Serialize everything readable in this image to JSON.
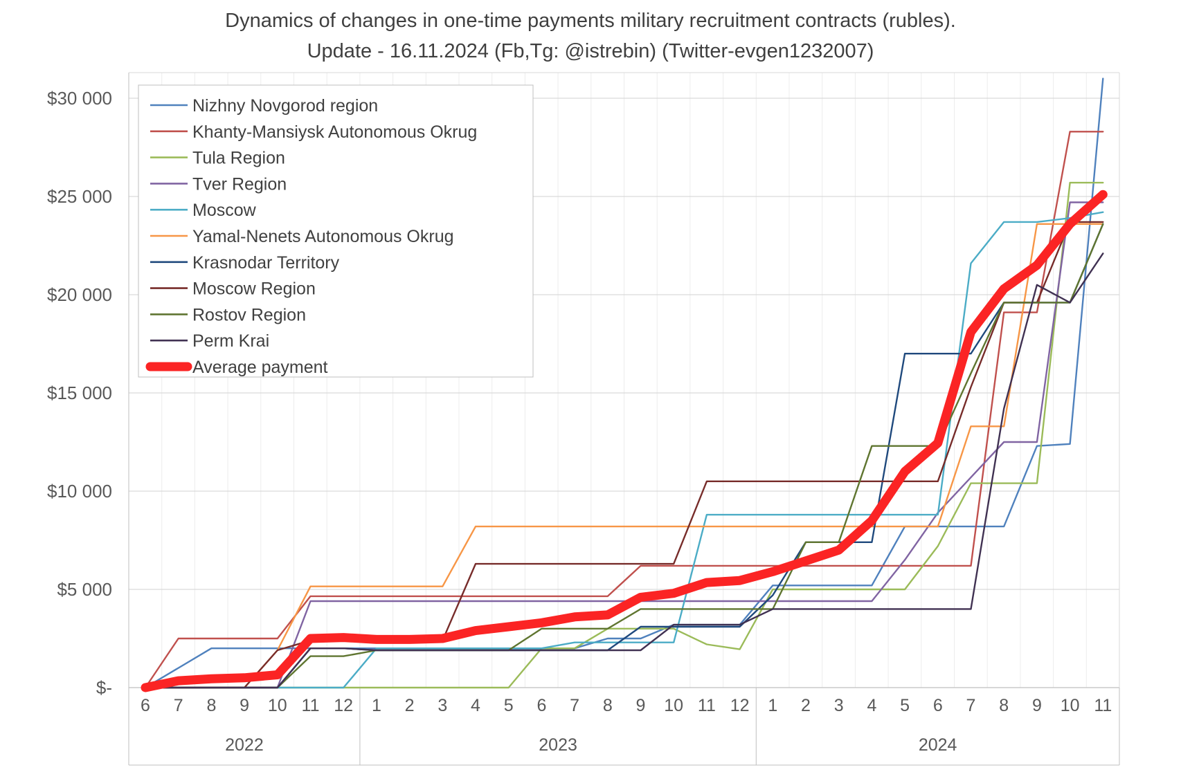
{
  "title": {
    "line1": "Dynamics of changes in one-time payments military recruitment contracts (rubles).",
    "line2": "Update - 16.11.2024 (Fb,Tg: @istrebin) (Twitter-evgen1232007)"
  },
  "colors": {
    "grid": "#d9d9d9",
    "grid_vertical": "#ececec",
    "axis_line": "#bfbfbf",
    "tick_text": "#595959",
    "legend_border": "#bfbfbf",
    "legend_text": "#404040",
    "average_red": "#fb2424"
  },
  "y_axis": {
    "ticks": [
      {
        "label": "$30 000",
        "value": 30000
      },
      {
        "label": "$25 000",
        "value": 25000
      },
      {
        "label": "$20 000",
        "value": 20000
      },
      {
        "label": "$15 000",
        "value": 15000
      },
      {
        "label": "$10 000",
        "value": 10000
      },
      {
        "label": "$5 000",
        "value": 5000
      },
      {
        "label": "$-",
        "value": 0
      }
    ]
  },
  "x_axis": {
    "year_groups": [
      {
        "label": "2022",
        "months": 7
      },
      {
        "label": "2023",
        "months": 12
      },
      {
        "label": "2024",
        "months": 11
      }
    ]
  },
  "chart_data": {
    "type": "line",
    "x_months": [
      "6",
      "7",
      "8",
      "9",
      "10",
      "11",
      "12",
      "1",
      "2",
      "3",
      "4",
      "5",
      "6",
      "7",
      "8",
      "9",
      "10",
      "11",
      "12",
      "1",
      "2",
      "3",
      "4",
      "5",
      "6",
      "7",
      "8",
      "9",
      "10",
      "11"
    ],
    "ylim": [
      0,
      30000
    ],
    "grid": true,
    "legend_position": "top-left",
    "series": [
      {
        "name": "Nizhny Novgorod region",
        "color": "#4f81bd",
        "width": 2.4,
        "values": [
          0,
          1000,
          2000,
          2000,
          2000,
          2000,
          2000,
          2000,
          2000,
          2000,
          2000,
          2000,
          2000,
          2000,
          2500,
          2500,
          3200,
          3200,
          3200,
          5200,
          5200,
          5200,
          5200,
          8200,
          8200,
          8200,
          8200,
          12300,
          12400,
          31000
        ]
      },
      {
        "name": "Khanty-Mansiysk Autonomous Okrug",
        "color": "#c0504d",
        "width": 2.4,
        "values": [
          0,
          2500,
          2500,
          2500,
          2500,
          4650,
          4650,
          4650,
          4650,
          4650,
          4650,
          4650,
          4650,
          4650,
          4650,
          6200,
          6200,
          6200,
          6200,
          6200,
          6200,
          6200,
          6200,
          6200,
          6200,
          6200,
          19100,
          19100,
          28300,
          28300
        ]
      },
      {
        "name": "Tula Region",
        "color": "#9bbb59",
        "width": 2.4,
        "values": [
          0,
          0,
          0,
          0,
          0,
          0,
          0,
          0,
          0,
          0,
          0,
          0,
          2000,
          2000,
          3000,
          3000,
          3000,
          2200,
          1950,
          5000,
          5000,
          5000,
          5000,
          5000,
          7200,
          10400,
          10400,
          10400,
          25700,
          25700
        ]
      },
      {
        "name": "Tver Region",
        "color": "#8064a2",
        "width": 2.4,
        "values": [
          0,
          0,
          0,
          0,
          0,
          4400,
          4400,
          4400,
          4400,
          4400,
          4400,
          4400,
          4400,
          4400,
          4400,
          4400,
          4400,
          4400,
          4400,
          4400,
          4400,
          4400,
          4400,
          6500,
          8900,
          10700,
          12500,
          12500,
          24700,
          24700
        ]
      },
      {
        "name": "Moscow",
        "color": "#4bacc6",
        "width": 2.4,
        "values": [
          0,
          0,
          0,
          0,
          0,
          0,
          0,
          2000,
          2000,
          2000,
          2000,
          2000,
          2000,
          2300,
          2300,
          2300,
          2300,
          8800,
          8800,
          8800,
          8800,
          8800,
          8800,
          8800,
          8800,
          21600,
          23700,
          23700,
          23900,
          24200
        ]
      },
      {
        "name": "Yamal-Nenets Autonomous Okrug",
        "color": "#f79646",
        "width": 2.4,
        "values": [
          0,
          0,
          0,
          0,
          1900,
          5150,
          5150,
          5150,
          5150,
          5150,
          8200,
          8200,
          8200,
          8200,
          8200,
          8200,
          8200,
          8200,
          8200,
          8200,
          8200,
          8200,
          8200,
          8200,
          8200,
          13300,
          13300,
          23600,
          23600,
          23600
        ]
      },
      {
        "name": "Krasnodar Territory",
        "color": "#1f497d",
        "width": 2.4,
        "values": [
          0,
          0,
          0,
          0,
          0,
          2000,
          2000,
          1900,
          1900,
          1900,
          1900,
          1900,
          1900,
          1900,
          1900,
          3100,
          3100,
          3100,
          3100,
          4700,
          7400,
          7400,
          7400,
          17000,
          17000,
          17000,
          19600,
          19600,
          19600,
          23600
        ]
      },
      {
        "name": "Moscow Region",
        "color": "#772c2a",
        "width": 2.4,
        "values": [
          0,
          0,
          0,
          0,
          1900,
          2400,
          2400,
          2400,
          2400,
          2400,
          6300,
          6300,
          6300,
          6300,
          6300,
          6300,
          6300,
          10500,
          10500,
          10500,
          10500,
          10500,
          10500,
          10500,
          10500,
          15300,
          19600,
          19600,
          23700,
          23700
        ]
      },
      {
        "name": "Rostov Region",
        "color": "#5f7530",
        "width": 2.4,
        "values": [
          0,
          0,
          0,
          0,
          0,
          1600,
          1600,
          1900,
          1900,
          1900,
          1900,
          1900,
          3000,
          3000,
          3000,
          4000,
          4000,
          4000,
          4000,
          4000,
          7400,
          7400,
          12300,
          12300,
          12300,
          16000,
          19600,
          19600,
          19600,
          23600
        ]
      },
      {
        "name": "Perm Krai",
        "color": "#403152",
        "width": 2.4,
        "values": [
          0,
          0,
          0,
          0,
          0,
          2000,
          2000,
          1900,
          1900,
          1900,
          1900,
          1900,
          1900,
          1900,
          1900,
          1900,
          3200,
          3200,
          3200,
          4000,
          4000,
          4000,
          4000,
          4000,
          4000,
          4000,
          14200,
          20500,
          19600,
          22100
        ]
      },
      {
        "name": "Average payment",
        "color": "#fb2424",
        "width": 13,
        "values": [
          0,
          350,
          450,
          500,
          650,
          2500,
          2550,
          2450,
          2450,
          2500,
          2900,
          3100,
          3300,
          3600,
          3700,
          4600,
          4800,
          5350,
          5450,
          5900,
          6450,
          7000,
          8500,
          11000,
          12450,
          18100,
          20300,
          21500,
          23600,
          25100
        ]
      }
    ]
  }
}
